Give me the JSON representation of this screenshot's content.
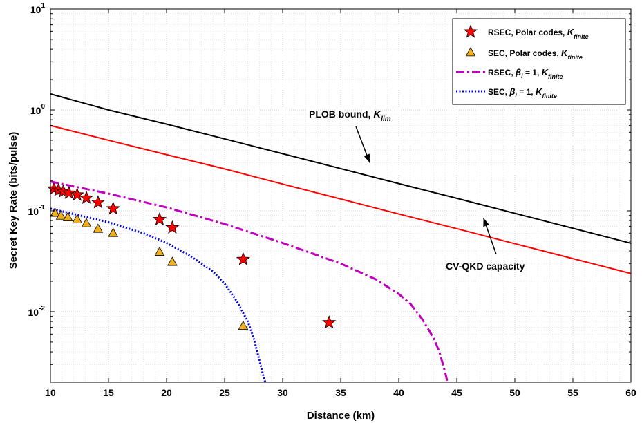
{
  "chart_data": {
    "type": "line",
    "xlabel": "Distance (km)",
    "ylabel": "Secret Key Rate (bits/pulse)",
    "xlim": [
      10,
      60
    ],
    "ylim": [
      0.002,
      10
    ],
    "yscale": "log",
    "grid": "major and minor, dotted",
    "x_ticks": [
      "10",
      "15",
      "20",
      "25",
      "30",
      "35",
      "40",
      "45",
      "50",
      "55",
      "60"
    ],
    "y_ticks": [
      {
        "value": 10,
        "base": "10",
        "exp": "1"
      },
      {
        "value": 1,
        "base": "10",
        "exp": "0"
      },
      {
        "value": 0.1,
        "base": "10",
        "exp": "-1"
      },
      {
        "value": 0.01,
        "base": "10",
        "exp": "-2"
      }
    ],
    "legend_position": "top-right",
    "legend": [
      {
        "text": "RSEC, Polar codes, ",
        "italic": "K",
        "sub": "finite"
      },
      {
        "text": "SEC, Polar codes, ",
        "italic": "K",
        "sub": "finite"
      },
      {
        "text": "RSEC,  ",
        "greek": "β",
        "gsub": "i",
        "mid": " = 1, ",
        "italic": "K",
        "sub": "finite"
      },
      {
        "text": "SEC,  ",
        "greek": "β",
        "gsub": "i",
        "mid": " = 1, ",
        "italic": "K",
        "sub": "finite"
      }
    ],
    "annotations": {
      "plob": {
        "text": "PLOB bound,  ",
        "italic": "K",
        "sub": "lim",
        "arrow_to": [
          37.5,
          0.3
        ]
      },
      "cvqkd": {
        "text": "CV-QKD capacity",
        "arrow_to": [
          47.3,
          0.085
        ]
      }
    },
    "series": [
      {
        "style": "solid",
        "color": "#000000",
        "x": [
          10,
          15,
          20,
          25,
          30,
          35,
          40,
          45,
          50,
          55,
          60
        ],
        "y": [
          1.44,
          1.0,
          0.722,
          0.516,
          0.368,
          0.262,
          0.186,
          0.133,
          0.0944,
          0.0671,
          0.0477
        ]
      },
      {
        "style": "solid",
        "color": "#ff0000",
        "x": [
          10,
          15,
          20,
          25,
          30,
          35,
          40,
          45,
          50,
          55,
          60
        ],
        "y": [
          0.7,
          0.5,
          0.36,
          0.26,
          0.184,
          0.131,
          0.093,
          0.0665,
          0.0472,
          0.0336,
          0.0239
        ]
      },
      {
        "name": "RSEC, Polar codes, Kfinite",
        "style": "marker",
        "marker": "star",
        "color": "#ff0000",
        "x": [
          10.3,
          10.7,
          11.1,
          11.6,
          12.3,
          13.1,
          14.1,
          15.4,
          19.4,
          20.5,
          26.6,
          34.0
        ],
        "y": [
          0.165,
          0.16,
          0.155,
          0.15,
          0.144,
          0.134,
          0.121,
          0.105,
          0.082,
          0.068,
          0.033,
          0.0078
        ]
      },
      {
        "name": "SEC, Polar codes, Kfinite",
        "style": "marker",
        "marker": "triangle",
        "color": "#f0b020",
        "x": [
          10.4,
          10.9,
          11.5,
          12.3,
          13.1,
          14.1,
          15.4,
          19.4,
          20.5,
          26.6
        ],
        "y": [
          0.095,
          0.089,
          0.086,
          0.082,
          0.075,
          0.066,
          0.06,
          0.039,
          0.031,
          0.0072
        ]
      },
      {
        "name": "RSEC, βi = 1, Kfinite",
        "style": "dashdot",
        "color": "#c000c0",
        "x": [
          10,
          15,
          20,
          25,
          30,
          35,
          38,
          40,
          41,
          42,
          43,
          43.5,
          44,
          44.2
        ],
        "y": [
          0.195,
          0.148,
          0.108,
          0.074,
          0.048,
          0.03,
          0.021,
          0.015,
          0.012,
          0.0085,
          0.0055,
          0.004,
          0.0025,
          0.002
        ]
      },
      {
        "name": "SEC, βi = 1, Kfinite",
        "style": "dotted",
        "color": "#0000e0",
        "x": [
          10,
          12,
          15,
          18,
          20,
          22,
          24,
          25,
          26,
          27,
          27.5,
          28,
          28.3,
          28.5
        ],
        "y": [
          0.105,
          0.093,
          0.077,
          0.06,
          0.048,
          0.036,
          0.025,
          0.019,
          0.013,
          0.008,
          0.0055,
          0.0033,
          0.0024,
          0.002
        ]
      }
    ]
  }
}
